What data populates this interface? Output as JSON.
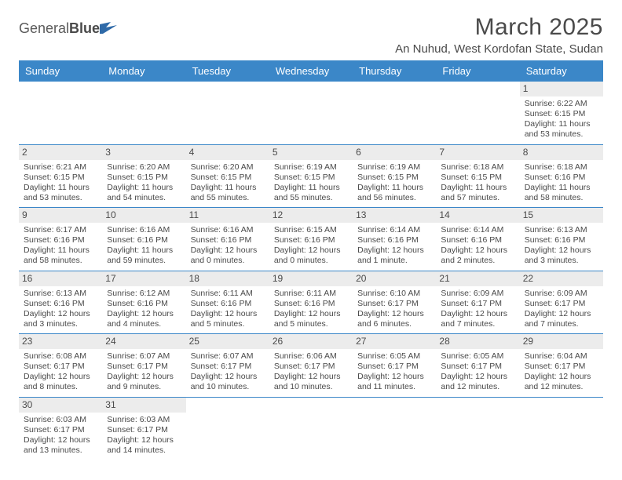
{
  "brand": {
    "name_prefix": "General",
    "name_bold": "Blue"
  },
  "header": {
    "month_title": "March 2025",
    "location": "An Nuhud, West Kordofan State, Sudan"
  },
  "colors": {
    "header_bg": "#3b87c8",
    "header_text": "#ffffff",
    "daynum_bg": "#ececec",
    "cell_border": "#3b87c8",
    "text": "#4a4a4a",
    "page_bg": "#ffffff"
  },
  "calendar": {
    "day_headers": [
      "Sunday",
      "Monday",
      "Tuesday",
      "Wednesday",
      "Thursday",
      "Friday",
      "Saturday"
    ],
    "weeks": [
      [
        null,
        null,
        null,
        null,
        null,
        null,
        {
          "n": "1",
          "sr": "Sunrise: 6:22 AM",
          "ss": "Sunset: 6:15 PM",
          "dl": "Daylight: 11 hours and 53 minutes."
        }
      ],
      [
        {
          "n": "2",
          "sr": "Sunrise: 6:21 AM",
          "ss": "Sunset: 6:15 PM",
          "dl": "Daylight: 11 hours and 53 minutes."
        },
        {
          "n": "3",
          "sr": "Sunrise: 6:20 AM",
          "ss": "Sunset: 6:15 PM",
          "dl": "Daylight: 11 hours and 54 minutes."
        },
        {
          "n": "4",
          "sr": "Sunrise: 6:20 AM",
          "ss": "Sunset: 6:15 PM",
          "dl": "Daylight: 11 hours and 55 minutes."
        },
        {
          "n": "5",
          "sr": "Sunrise: 6:19 AM",
          "ss": "Sunset: 6:15 PM",
          "dl": "Daylight: 11 hours and 55 minutes."
        },
        {
          "n": "6",
          "sr": "Sunrise: 6:19 AM",
          "ss": "Sunset: 6:15 PM",
          "dl": "Daylight: 11 hours and 56 minutes."
        },
        {
          "n": "7",
          "sr": "Sunrise: 6:18 AM",
          "ss": "Sunset: 6:15 PM",
          "dl": "Daylight: 11 hours and 57 minutes."
        },
        {
          "n": "8",
          "sr": "Sunrise: 6:18 AM",
          "ss": "Sunset: 6:16 PM",
          "dl": "Daylight: 11 hours and 58 minutes."
        }
      ],
      [
        {
          "n": "9",
          "sr": "Sunrise: 6:17 AM",
          "ss": "Sunset: 6:16 PM",
          "dl": "Daylight: 11 hours and 58 minutes."
        },
        {
          "n": "10",
          "sr": "Sunrise: 6:16 AM",
          "ss": "Sunset: 6:16 PM",
          "dl": "Daylight: 11 hours and 59 minutes."
        },
        {
          "n": "11",
          "sr": "Sunrise: 6:16 AM",
          "ss": "Sunset: 6:16 PM",
          "dl": "Daylight: 12 hours and 0 minutes."
        },
        {
          "n": "12",
          "sr": "Sunrise: 6:15 AM",
          "ss": "Sunset: 6:16 PM",
          "dl": "Daylight: 12 hours and 0 minutes."
        },
        {
          "n": "13",
          "sr": "Sunrise: 6:14 AM",
          "ss": "Sunset: 6:16 PM",
          "dl": "Daylight: 12 hours and 1 minute."
        },
        {
          "n": "14",
          "sr": "Sunrise: 6:14 AM",
          "ss": "Sunset: 6:16 PM",
          "dl": "Daylight: 12 hours and 2 minutes."
        },
        {
          "n": "15",
          "sr": "Sunrise: 6:13 AM",
          "ss": "Sunset: 6:16 PM",
          "dl": "Daylight: 12 hours and 3 minutes."
        }
      ],
      [
        {
          "n": "16",
          "sr": "Sunrise: 6:13 AM",
          "ss": "Sunset: 6:16 PM",
          "dl": "Daylight: 12 hours and 3 minutes."
        },
        {
          "n": "17",
          "sr": "Sunrise: 6:12 AM",
          "ss": "Sunset: 6:16 PM",
          "dl": "Daylight: 12 hours and 4 minutes."
        },
        {
          "n": "18",
          "sr": "Sunrise: 6:11 AM",
          "ss": "Sunset: 6:16 PM",
          "dl": "Daylight: 12 hours and 5 minutes."
        },
        {
          "n": "19",
          "sr": "Sunrise: 6:11 AM",
          "ss": "Sunset: 6:16 PM",
          "dl": "Daylight: 12 hours and 5 minutes."
        },
        {
          "n": "20",
          "sr": "Sunrise: 6:10 AM",
          "ss": "Sunset: 6:17 PM",
          "dl": "Daylight: 12 hours and 6 minutes."
        },
        {
          "n": "21",
          "sr": "Sunrise: 6:09 AM",
          "ss": "Sunset: 6:17 PM",
          "dl": "Daylight: 12 hours and 7 minutes."
        },
        {
          "n": "22",
          "sr": "Sunrise: 6:09 AM",
          "ss": "Sunset: 6:17 PM",
          "dl": "Daylight: 12 hours and 7 minutes."
        }
      ],
      [
        {
          "n": "23",
          "sr": "Sunrise: 6:08 AM",
          "ss": "Sunset: 6:17 PM",
          "dl": "Daylight: 12 hours and 8 minutes."
        },
        {
          "n": "24",
          "sr": "Sunrise: 6:07 AM",
          "ss": "Sunset: 6:17 PM",
          "dl": "Daylight: 12 hours and 9 minutes."
        },
        {
          "n": "25",
          "sr": "Sunrise: 6:07 AM",
          "ss": "Sunset: 6:17 PM",
          "dl": "Daylight: 12 hours and 10 minutes."
        },
        {
          "n": "26",
          "sr": "Sunrise: 6:06 AM",
          "ss": "Sunset: 6:17 PM",
          "dl": "Daylight: 12 hours and 10 minutes."
        },
        {
          "n": "27",
          "sr": "Sunrise: 6:05 AM",
          "ss": "Sunset: 6:17 PM",
          "dl": "Daylight: 12 hours and 11 minutes."
        },
        {
          "n": "28",
          "sr": "Sunrise: 6:05 AM",
          "ss": "Sunset: 6:17 PM",
          "dl": "Daylight: 12 hours and 12 minutes."
        },
        {
          "n": "29",
          "sr": "Sunrise: 6:04 AM",
          "ss": "Sunset: 6:17 PM",
          "dl": "Daylight: 12 hours and 12 minutes."
        }
      ],
      [
        {
          "n": "30",
          "sr": "Sunrise: 6:03 AM",
          "ss": "Sunset: 6:17 PM",
          "dl": "Daylight: 12 hours and 13 minutes."
        },
        {
          "n": "31",
          "sr": "Sunrise: 6:03 AM",
          "ss": "Sunset: 6:17 PM",
          "dl": "Daylight: 12 hours and 14 minutes."
        },
        null,
        null,
        null,
        null,
        null
      ]
    ]
  }
}
